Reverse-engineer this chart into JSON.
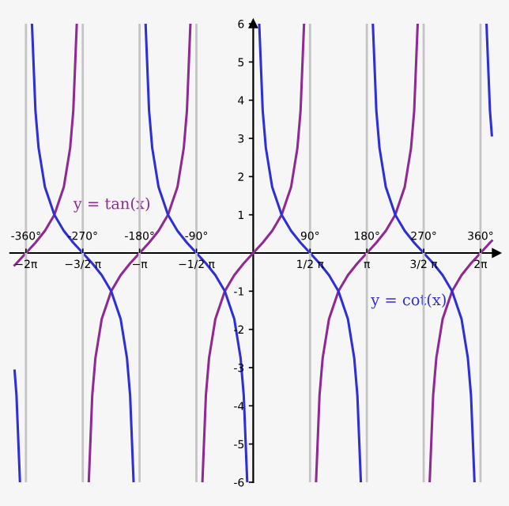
{
  "chart_data": {
    "type": "line",
    "xlim": [
      -385,
      385
    ],
    "ylim": [
      -6,
      6
    ],
    "xticks": [
      {
        "value": -360,
        "label": "-360°"
      },
      {
        "value": -270,
        "label": "-270°"
      },
      {
        "value": -180,
        "label": "-180°"
      },
      {
        "value": -90,
        "label": "-90°"
      },
      {
        "value": 90,
        "label": "90°"
      },
      {
        "value": 180,
        "label": "180°"
      },
      {
        "value": 270,
        "label": "270°"
      },
      {
        "value": 360,
        "label": "360°"
      }
    ],
    "x2lim": [
      -6.72,
      6.72
    ],
    "x2ticks": [
      {
        "value": -6.283,
        "label": "−2π"
      },
      {
        "value": -4.712,
        "label": "−3/2 π"
      },
      {
        "value": -3.142,
        "label": "−π"
      },
      {
        "value": -1.571,
        "label": "−1/2 π"
      },
      {
        "value": 1.571,
        "label": "1/2 π"
      },
      {
        "value": 3.142,
        "label": "π"
      },
      {
        "value": 4.712,
        "label": "3/2 π"
      },
      {
        "value": 6.283,
        "label": "2π"
      }
    ],
    "yticks": [
      -6,
      -5,
      -4,
      -3,
      -2,
      -1,
      1,
      2,
      3,
      4,
      5,
      6
    ],
    "grid": "x",
    "marker": "none",
    "line_style": "solid",
    "series": [
      {
        "name": "y = tan(x)",
        "color": "#8e2a91",
        "x": [
          -378,
          -375,
          -360,
          -345,
          -330,
          -315,
          -300,
          -290,
          -285,
          -279.5,
          -270,
          -260.5,
          -255,
          -250,
          -240,
          -225,
          -210,
          -195,
          -180,
          -165,
          -150,
          -135,
          -120,
          -110,
          -105,
          -99.5,
          -90,
          -80.5,
          -75,
          -70,
          -60,
          -45,
          -30,
          -15,
          0,
          15,
          30,
          45,
          60,
          70,
          75,
          80.5,
          90,
          99.5,
          105,
          110,
          120,
          135,
          150,
          165,
          180,
          195,
          210,
          225,
          240,
          250,
          255,
          260.5,
          270,
          279.5,
          285,
          290,
          300,
          315,
          330,
          345,
          360,
          375,
          378
        ],
        "values": [
          -0.32,
          -0.27,
          0,
          0.27,
          0.58,
          1,
          1.73,
          2.75,
          3.73,
          6,
          null,
          -6,
          -3.73,
          -2.75,
          -1.73,
          -1,
          -0.58,
          -0.27,
          0,
          0.27,
          0.58,
          1,
          1.73,
          2.75,
          3.73,
          6,
          null,
          -6,
          -3.73,
          -2.75,
          -1.73,
          -1,
          -0.58,
          -0.27,
          0,
          0.27,
          0.58,
          1,
          1.73,
          2.75,
          3.73,
          6,
          null,
          -6,
          -3.73,
          -2.75,
          -1.73,
          -1,
          -0.58,
          -0.27,
          0,
          0.27,
          0.58,
          1,
          1.73,
          2.75,
          3.73,
          6,
          null,
          -6,
          -3.73,
          -2.75,
          -1.73,
          -1,
          -0.58,
          -0.27,
          0,
          0.27,
          0.32
        ]
      },
      {
        "name": "y = cot(x)",
        "color": "#2f2fd6",
        "x": [
          -378,
          -375,
          -369.5,
          -360,
          -350.5,
          -345,
          -340,
          -330,
          -315,
          -300,
          -285,
          -270,
          -255,
          -240,
          -225,
          -210,
          -200,
          -195,
          -189.5,
          -180,
          -170.5,
          -165,
          -160,
          -150,
          -135,
          -120,
          -105,
          -90,
          -75,
          -60,
          -45,
          -30,
          -20,
          -15,
          -9.5,
          0,
          9.5,
          15,
          20,
          30,
          45,
          60,
          75,
          90,
          105,
          120,
          135,
          150,
          160,
          165,
          170.5,
          180,
          189.5,
          195,
          200,
          210,
          225,
          240,
          255,
          270,
          285,
          300,
          315,
          330,
          340,
          345,
          350.5,
          360,
          369.5,
          375,
          378
        ],
        "values": [
          -3.08,
          -3.73,
          -6,
          null,
          6,
          3.73,
          2.75,
          1.73,
          1,
          0.58,
          0.27,
          0,
          -0.27,
          -0.58,
          -1,
          -1.73,
          -2.75,
          -3.73,
          -6,
          null,
          6,
          3.73,
          2.75,
          1.73,
          1,
          0.58,
          0.27,
          0,
          -0.27,
          -0.58,
          -1,
          -1.73,
          -2.75,
          -3.73,
          -6,
          null,
          6,
          3.73,
          2.75,
          1.73,
          1,
          0.58,
          0.27,
          0,
          -0.27,
          -0.58,
          -1,
          -1.73,
          -2.75,
          -3.73,
          -6,
          null,
          6,
          3.73,
          2.75,
          1.73,
          1,
          0.58,
          0.27,
          0,
          -0.27,
          -0.58,
          -1,
          -1.73,
          -2.75,
          -3.73,
          -6,
          null,
          6,
          3.73,
          3.08
        ]
      }
    ]
  }
}
